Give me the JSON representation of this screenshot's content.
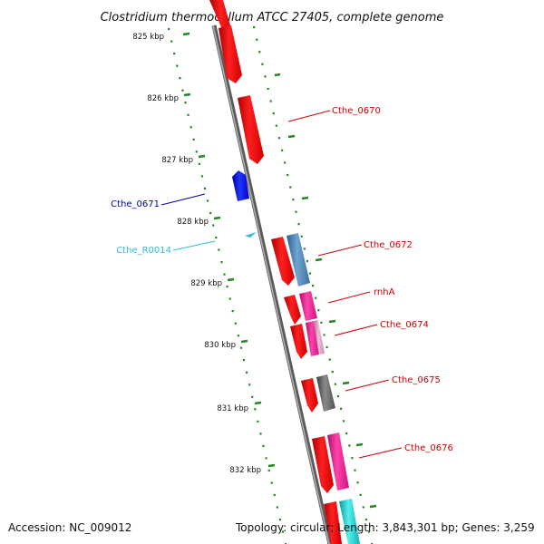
{
  "title": "Clostridium thermocellum ATCC 27405, complete genome",
  "scale_ticks": [
    "825 kbp",
    "826 kbp",
    "827 kbp",
    "828 kbp",
    "829 kbp",
    "830 kbp",
    "831 kbp",
    "832 kbp"
  ],
  "genes": [
    {
      "id": "cthe-0670",
      "label": "Cthe_0670",
      "color": "#cc0000"
    },
    {
      "id": "cthe-0671",
      "label": "Cthe_0671",
      "color": "#0000aa"
    },
    {
      "id": "cthe-r0014",
      "label": "Cthe_R0014",
      "color": "#33bbdd"
    },
    {
      "id": "cthe-0672",
      "label": "Cthe_0672",
      "color": "#cc0000"
    },
    {
      "id": "rnha",
      "label": "rnhA",
      "color": "#cc0000"
    },
    {
      "id": "cthe-0674",
      "label": "Cthe_0674",
      "color": "#cc0000"
    },
    {
      "id": "cthe-0675",
      "label": "Cthe_0675",
      "color": "#cc0000"
    },
    {
      "id": "cthe-0676",
      "label": "Cthe_0676",
      "color": "#cc0000"
    }
  ],
  "colors": {
    "cds_forward": "#ee1111",
    "cds_reverse": "#1111dd",
    "rna": "#33bbdd",
    "cog_steelblue": "#4682b4",
    "cog_pink": "#ee2299",
    "cog_lightpink": "#dd99bb",
    "cog_gray": "#666666",
    "cog_cyan": "#22cccc",
    "backbone": "#808080",
    "ticks": "#228822"
  },
  "footer": {
    "accession": "Accession: NC_009012",
    "summary": "Topology: circular; Length: 3,843,301 bp; Genes: 3,259"
  }
}
